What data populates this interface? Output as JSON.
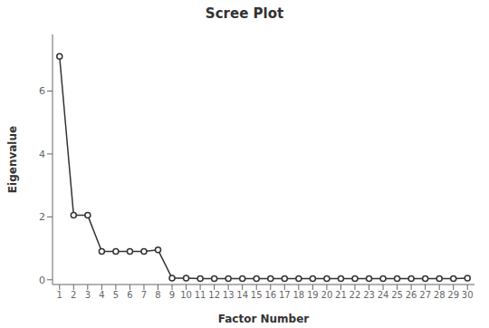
{
  "chart_data": {
    "type": "line",
    "title": "Scree Plot",
    "xlabel": "Factor Number",
    "ylabel": "Eigenvalue",
    "x": [
      1,
      2,
      3,
      4,
      5,
      6,
      7,
      8,
      9,
      10,
      11,
      12,
      13,
      14,
      15,
      16,
      17,
      18,
      19,
      20,
      21,
      22,
      23,
      24,
      25,
      26,
      27,
      28,
      29,
      30
    ],
    "values": [
      7.1,
      2.05,
      2.05,
      0.9,
      0.9,
      0.9,
      0.9,
      0.95,
      0.05,
      0.05,
      0.04,
      0.04,
      0.04,
      0.04,
      0.04,
      0.04,
      0.04,
      0.04,
      0.04,
      0.04,
      0.04,
      0.04,
      0.04,
      0.04,
      0.04,
      0.04,
      0.04,
      0.04,
      0.04,
      0.05
    ],
    "color": "#333333",
    "marker": "circle",
    "xlim": [
      0.5,
      30.5
    ],
    "xticks": [
      1,
      2,
      3,
      4,
      5,
      6,
      7,
      8,
      9,
      10,
      11,
      12,
      13,
      14,
      15,
      16,
      17,
      18,
      19,
      20,
      21,
      22,
      23,
      24,
      25,
      26,
      27,
      28,
      29,
      30
    ],
    "ylim": [
      -0.15,
      7.8
    ],
    "yticks": [
      0,
      2,
      4,
      6
    ],
    "grid": false
  }
}
